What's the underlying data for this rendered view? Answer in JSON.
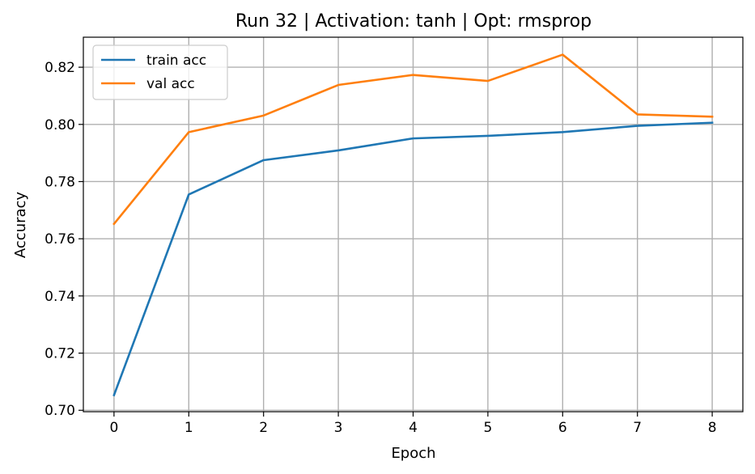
{
  "chart_data": {
    "type": "line",
    "title": "Run 32 | Activation: tanh | Opt: rmsprop",
    "xlabel": "Epoch",
    "ylabel": "Accuracy",
    "x": [
      0,
      1,
      2,
      3,
      4,
      5,
      6,
      7,
      8
    ],
    "xlim": [
      -0.41,
      8.41
    ],
    "ylim": [
      0.6995,
      0.8305
    ],
    "xticks": [
      0,
      1,
      2,
      3,
      4,
      5,
      6,
      7,
      8
    ],
    "yticks": [
      0.7,
      0.72,
      0.74,
      0.76,
      0.78,
      0.8,
      0.82
    ],
    "ytick_labels": [
      "0.70",
      "0.72",
      "0.74",
      "0.76",
      "0.78",
      "0.80",
      "0.82"
    ],
    "grid": true,
    "legend_position": "upper-left",
    "series": [
      {
        "name": "train acc",
        "color": "#1f77b4",
        "values": [
          0.7053,
          0.7755,
          0.7875,
          0.7909,
          0.7951,
          0.796,
          0.7973,
          0.7995,
          0.8006
        ]
      },
      {
        "name": "val acc",
        "color": "#ff7f0e",
        "values": [
          0.7652,
          0.7973,
          0.8031,
          0.8138,
          0.8173,
          0.8152,
          0.8244,
          0.8035,
          0.8027
        ]
      }
    ]
  }
}
